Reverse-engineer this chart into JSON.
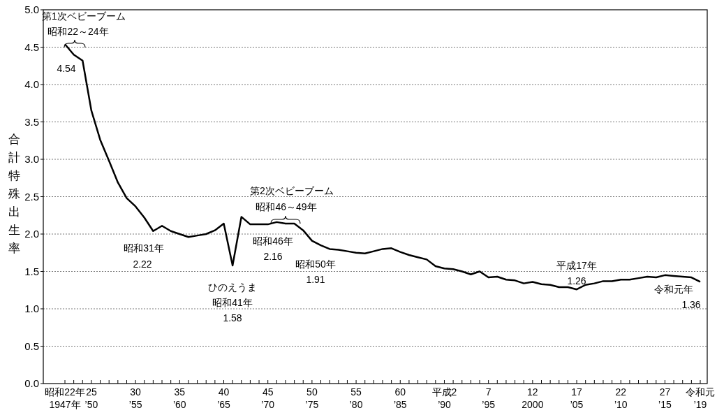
{
  "chart_data": {
    "type": "line",
    "ylabel": "合計特殊出生率",
    "categories": [
      "昭和22年\n1947年",
      null,
      null,
      "25\n’50",
      null,
      null,
      null,
      null,
      "30\n’55",
      null,
      null,
      null,
      null,
      "35\n’60",
      null,
      null,
      null,
      null,
      "40\n’65",
      null,
      null,
      null,
      null,
      "45\n’70",
      null,
      null,
      null,
      null,
      "50\n’75",
      null,
      null,
      null,
      null,
      "55\n’80",
      null,
      null,
      null,
      null,
      "60\n’85",
      null,
      null,
      null,
      null,
      "平成2\n’90",
      null,
      null,
      null,
      null,
      "7\n’95",
      null,
      null,
      null,
      null,
      "12\n2000",
      null,
      null,
      null,
      null,
      "17\n’05",
      null,
      null,
      null,
      null,
      "22\n’10",
      null,
      null,
      null,
      null,
      "27\n’15",
      null,
      null,
      null,
      "令和元\n’19"
    ],
    "series": [
      {
        "color": "#000000",
        "values": [
          4.54,
          4.4,
          4.32,
          3.65,
          3.26,
          2.98,
          2.69,
          2.48,
          2.37,
          2.22,
          2.04,
          2.11,
          2.04,
          2.0,
          1.96,
          1.98,
          2.0,
          2.05,
          2.14,
          1.58,
          2.23,
          2.13,
          2.13,
          2.13,
          2.16,
          2.14,
          2.14,
          2.05,
          1.91,
          1.85,
          1.8,
          1.79,
          1.77,
          1.75,
          1.74,
          1.77,
          1.8,
          1.81,
          1.76,
          1.72,
          1.69,
          1.66,
          1.57,
          1.54,
          1.53,
          1.5,
          1.46,
          1.5,
          1.42,
          1.43,
          1.39,
          1.38,
          1.34,
          1.36,
          1.33,
          1.32,
          1.29,
          1.29,
          1.26,
          1.32,
          1.34,
          1.37,
          1.37,
          1.39,
          1.39,
          1.41,
          1.43,
          1.42,
          1.45,
          1.44,
          1.43,
          1.42,
          1.36
        ]
      }
    ],
    "ylim": [
      0,
      5
    ],
    "yticks": [
      {
        "value": 0,
        "label": "0.0"
      },
      {
        "value": 0.5,
        "label": "0.5"
      },
      {
        "value": 1,
        "label": "1.0"
      },
      {
        "value": 1.5,
        "label": "1.5"
      },
      {
        "value": 2,
        "label": "2.0"
      },
      {
        "value": 2.5,
        "label": "2.5"
      },
      {
        "value": 3,
        "label": "3.0"
      },
      {
        "value": 3.5,
        "label": "3.5"
      },
      {
        "value": 4,
        "label": "4.0"
      },
      {
        "value": 4.5,
        "label": "4.5"
      },
      {
        "value": 5,
        "label": "5.0"
      }
    ],
    "grid": "y",
    "line_style": "solid",
    "marker": "none",
    "annotations": [
      "第1次ベビーブーム",
      "昭和22～24年",
      "昭和31年",
      "ひのえうま",
      "昭和41年",
      "第2次ベビーブーム",
      "昭和46～49年",
      "昭和46年",
      "昭和50年",
      "平成17年",
      "令和元年",
      "4.54",
      "2.22",
      "1.58",
      "2.16",
      "1.91",
      "1.26",
      "1.36"
    ]
  }
}
